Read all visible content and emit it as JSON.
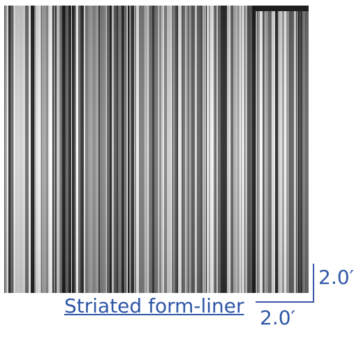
{
  "caption": {
    "text": "Striated form-liner"
  },
  "dimensions": {
    "height_label": "2.0′",
    "width_label": "2.0′"
  },
  "colors": {
    "accent": "#2e56a6",
    "texture_base": "#8a8a8a"
  }
}
